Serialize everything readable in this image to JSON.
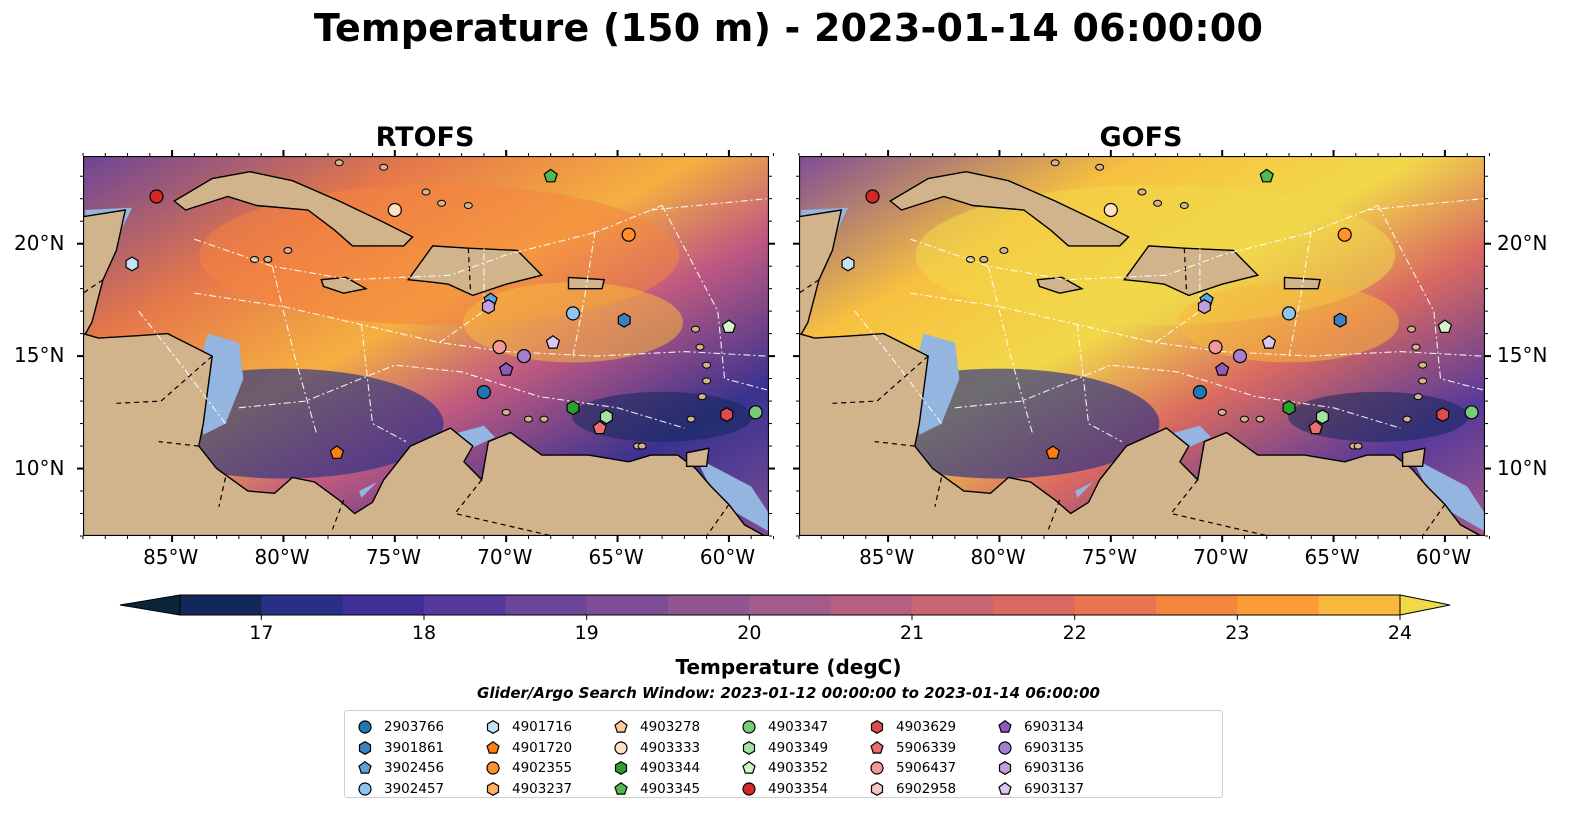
{
  "title": "Temperature (150 m) - 2023-01-14 06:00:00",
  "panels": [
    {
      "name": "RTOFS"
    },
    {
      "name": "GOFS"
    }
  ],
  "axes": {
    "lon_ticks": [
      "85°W",
      "80°W",
      "75°W",
      "70°W",
      "65°W",
      "60°W"
    ],
    "lat_ticks": [
      "20°N",
      "15°N",
      "10°N"
    ]
  },
  "colorbar": {
    "label": "Temperature (degC)",
    "min": 17,
    "max": 24.5,
    "step": 0.5,
    "ticks": [
      "17",
      "18",
      "19",
      "20",
      "21",
      "22",
      "23",
      "24"
    ],
    "colors": [
      "#0b2437",
      "#13285a",
      "#272f86",
      "#3f2f97",
      "#56399b",
      "#6b4598",
      "#7e4d96",
      "#925591",
      "#a45a8a",
      "#b65f80",
      "#c96570",
      "#da6a61",
      "#ea7451",
      "#f5843f",
      "#fa9b35",
      "#f7b83c",
      "#f1d94a"
    ]
  },
  "search_window": "Glider/Argo Search Window: 2023-01-12 00:00:00 to 2023-01-14 06:00:00",
  "colors": {
    "land": "#d2b48c",
    "shallow_water": "#93b5e0",
    "eez_lines": "#ffffff",
    "borders": "#000000"
  },
  "legend": [
    {
      "id": "2903766",
      "marker": "circle",
      "color": "#1f77b4"
    },
    {
      "id": "3901861",
      "marker": "hexagon",
      "color": "#3b80c0"
    },
    {
      "id": "3902456",
      "marker": "pentagon",
      "color": "#5aa5df"
    },
    {
      "id": "3902457",
      "marker": "circle",
      "color": "#8ec6f0"
    },
    {
      "id": "4901716",
      "marker": "hexagon",
      "color": "#c6e2f7"
    },
    {
      "id": "4901720",
      "marker": "pentagon",
      "color": "#ff7f0e"
    },
    {
      "id": "4902355",
      "marker": "circle",
      "color": "#ff9030"
    },
    {
      "id": "4903237",
      "marker": "hexagon",
      "color": "#ffb060"
    },
    {
      "id": "4903278",
      "marker": "pentagon",
      "color": "#ffca95"
    },
    {
      "id": "4903333",
      "marker": "circle",
      "color": "#ffe1c2"
    },
    {
      "id": "4903344",
      "marker": "hexagon",
      "color": "#2ca02c"
    },
    {
      "id": "4903345",
      "marker": "pentagon",
      "color": "#4fbb4f"
    },
    {
      "id": "4903347",
      "marker": "circle",
      "color": "#77cc77"
    },
    {
      "id": "4903349",
      "marker": "hexagon",
      "color": "#a5e2a0"
    },
    {
      "id": "4903352",
      "marker": "pentagon",
      "color": "#d2f5cc"
    },
    {
      "id": "4903354",
      "marker": "circle",
      "color": "#d62728"
    },
    {
      "id": "4903629",
      "marker": "hexagon",
      "color": "#e04a4a"
    },
    {
      "id": "5906339",
      "marker": "pentagon",
      "color": "#ea6e6e"
    },
    {
      "id": "5906437",
      "marker": "circle",
      "color": "#f29a9a"
    },
    {
      "id": "6902958",
      "marker": "hexagon",
      "color": "#f7c5c5"
    },
    {
      "id": "6903134",
      "marker": "pentagon",
      "color": "#8f5ab8"
    },
    {
      "id": "6903135",
      "marker": "circle",
      "color": "#a77fcf"
    },
    {
      "id": "6903136",
      "marker": "hexagon",
      "color": "#c0a0e0"
    },
    {
      "id": "6903137",
      "marker": "pentagon",
      "color": "#dcc6f2"
    }
  ],
  "floats": [
    {
      "id": "4903354",
      "lon": -85.7,
      "lat": 22.1
    },
    {
      "id": "4901716",
      "lon": -86.8,
      "lat": 19.1
    },
    {
      "id": "4903333",
      "lon": -75.0,
      "lat": 21.5
    },
    {
      "id": "4903345",
      "lon": -68.0,
      "lat": 23.0
    },
    {
      "id": "4902355",
      "lon": -64.5,
      "lat": 20.4
    },
    {
      "id": "3902456",
      "lon": -70.7,
      "lat": 17.5
    },
    {
      "id": "6903136",
      "lon": -70.8,
      "lat": 17.2
    },
    {
      "id": "3902457",
      "lon": -67.0,
      "lat": 16.9
    },
    {
      "id": "3901861",
      "lon": -64.7,
      "lat": 16.6
    },
    {
      "id": "4903352",
      "lon": -60.0,
      "lat": 16.3
    },
    {
      "id": "5906437",
      "lon": -70.3,
      "lat": 15.4
    },
    {
      "id": "6903135",
      "lon": -69.2,
      "lat": 15.0
    },
    {
      "id": "6903137",
      "lon": -67.9,
      "lat": 15.6
    },
    {
      "id": "6903134",
      "lon": -70.0,
      "lat": 14.4
    },
    {
      "id": "2903766",
      "lon": -71.0,
      "lat": 13.4
    },
    {
      "id": "4903344",
      "lon": -67.0,
      "lat": 12.7
    },
    {
      "id": "4903349",
      "lon": -65.5,
      "lat": 12.3
    },
    {
      "id": "5906339",
      "lon": -65.8,
      "lat": 11.8
    },
    {
      "id": "4903629",
      "lon": -60.1,
      "lat": 12.4
    },
    {
      "id": "4903347",
      "lon": -58.8,
      "lat": 12.5
    },
    {
      "id": "4901720",
      "lon": -77.6,
      "lat": 10.7
    }
  ]
}
